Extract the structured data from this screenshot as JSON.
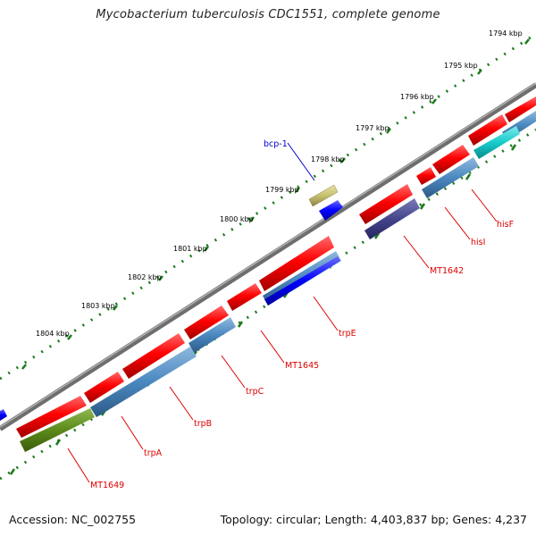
{
  "title": "Mycobacterium tuberculosis CDC1551, complete genome",
  "footer": {
    "accession": "Accession: NC_002755",
    "summary": "Topology: circular; Length: 4,403,837 bp; Genes: 4,237"
  },
  "scale": {
    "ticks": [
      "1794 kbp",
      "1795 kbp",
      "1796 kbp",
      "1797 kbp",
      "1798 kbp",
      "1799 kbp",
      "1800 kbp",
      "1801 kbp",
      "1802 kbp",
      "1803 kbp",
      "1804 kbp"
    ]
  },
  "genes": [
    {
      "name": "bcp-1",
      "color": "#0000cc"
    },
    {
      "name": "hisF",
      "color": "#dd0000"
    },
    {
      "name": "hisI",
      "color": "#dd0000"
    },
    {
      "name": "MT1642",
      "color": "#dd0000"
    },
    {
      "name": "trpE",
      "color": "#dd0000"
    },
    {
      "name": "MT1645",
      "color": "#dd0000"
    },
    {
      "name": "trpC",
      "color": "#dd0000"
    },
    {
      "name": "trpB",
      "color": "#dd0000"
    },
    {
      "name": "trpA",
      "color": "#dd0000"
    },
    {
      "name": "MT1649",
      "color": "#dd0000"
    }
  ],
  "colors": {
    "backbone": "#8a8a8a",
    "tick": "#1a7a1a",
    "cds": "#ff0000",
    "steelblue": "#4a88c0",
    "cyan": "#17cccc",
    "navy": "#45458c",
    "olive": "#5c8a1a",
    "khaki": "#c8c070",
    "blue": "#0000ff"
  }
}
